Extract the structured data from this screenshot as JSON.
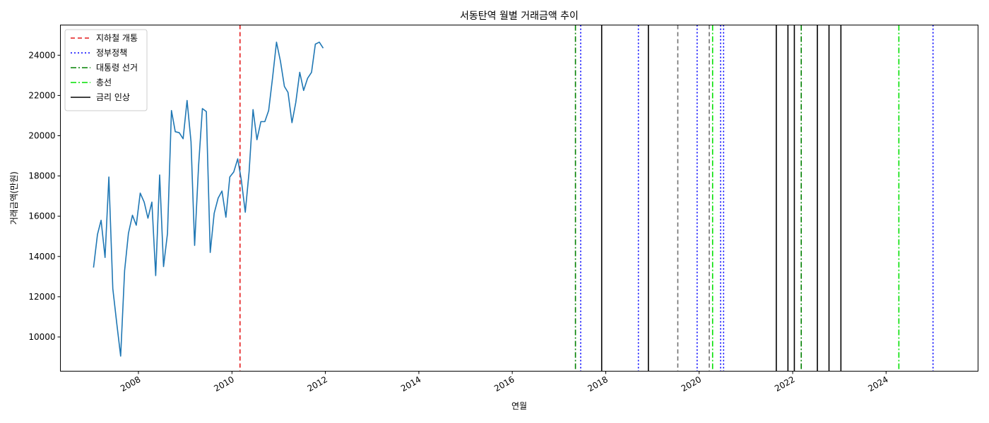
{
  "chart_data": {
    "type": "line",
    "title": "서동탄역 월별 거래금액 추이",
    "xlabel": "연월",
    "ylabel": "거래금액(만원)",
    "xlim": [
      "2006-05-01",
      "2025-12-20"
    ],
    "ylim": [
      8300,
      25500
    ],
    "x_ticks": [
      "2008-01-01",
      "2010-01-01",
      "2012-01-01",
      "2014-01-01",
      "2016-01-01",
      "2018-01-01",
      "2020-01-01",
      "2022-01-01",
      "2024-01-01"
    ],
    "x_tick_labels": [
      "2008",
      "2010",
      "2012",
      "2014",
      "2016",
      "2018",
      "2020",
      "2022",
      "2024"
    ],
    "y_ticks": [
      10000,
      12000,
      14000,
      16000,
      18000,
      20000,
      22000,
      24000
    ],
    "grid": false,
    "legend_position": "top-left",
    "series": [
      {
        "color": "#1f77b4",
        "points": [
          [
            "2007-01",
            13450
          ],
          [
            "2007-02",
            15100
          ],
          [
            "2007-03",
            15800
          ],
          [
            "2007-04",
            13950
          ],
          [
            "2007-05",
            17950
          ],
          [
            "2007-06",
            12400
          ],
          [
            "2007-07",
            10700
          ],
          [
            "2007-08",
            9050
          ],
          [
            "2007-09",
            13300
          ],
          [
            "2007-10",
            15150
          ],
          [
            "2007-11",
            16050
          ],
          [
            "2007-12",
            15550
          ],
          [
            "2008-01",
            17150
          ],
          [
            "2008-02",
            16700
          ],
          [
            "2008-03",
            15900
          ],
          [
            "2008-04",
            16700
          ],
          [
            "2008-05",
            13050
          ],
          [
            "2008-06",
            18050
          ],
          [
            "2008-07",
            13500
          ],
          [
            "2008-08",
            15150
          ],
          [
            "2008-09",
            21250
          ],
          [
            "2008-10",
            20200
          ],
          [
            "2008-11",
            20150
          ],
          [
            "2008-12",
            19850
          ],
          [
            "2009-01",
            21750
          ],
          [
            "2009-02",
            19700
          ],
          [
            "2009-03",
            14550
          ],
          [
            "2009-04",
            18500
          ],
          [
            "2009-05",
            21350
          ],
          [
            "2009-06",
            21200
          ],
          [
            "2009-07",
            14200
          ],
          [
            "2009-08",
            16150
          ],
          [
            "2009-09",
            16900
          ],
          [
            "2009-10",
            17250
          ],
          [
            "2009-11",
            15950
          ],
          [
            "2009-12",
            17950
          ],
          [
            "2010-01",
            18200
          ],
          [
            "2010-02",
            18850
          ],
          [
            "2010-03",
            17800
          ],
          [
            "2010-04",
            16200
          ],
          [
            "2010-05",
            18200
          ],
          [
            "2010-06",
            21300
          ],
          [
            "2010-07",
            19800
          ],
          [
            "2010-08",
            20700
          ],
          [
            "2010-09",
            20700
          ],
          [
            "2010-10",
            21250
          ],
          [
            "2010-11",
            22900
          ],
          [
            "2010-12",
            24650
          ],
          [
            "2011-01",
            23700
          ],
          [
            "2011-02",
            22450
          ],
          [
            "2011-03",
            22150
          ],
          [
            "2011-04",
            20650
          ],
          [
            "2011-05",
            21650
          ],
          [
            "2011-06",
            23150
          ],
          [
            "2011-07",
            22250
          ],
          [
            "2011-08",
            22850
          ],
          [
            "2011-09",
            23150
          ],
          [
            "2011-10",
            24550
          ],
          [
            "2011-11",
            24650
          ],
          [
            "2011-12",
            24350
          ]
        ]
      }
    ],
    "events": [
      {
        "date": "2010-03-05",
        "category": "subway"
      },
      {
        "date": "2017-05-09",
        "category": "election_pres"
      },
      {
        "date": "2017-06-19",
        "category": "policy"
      },
      {
        "date": "2017-11-30",
        "category": "rate"
      },
      {
        "date": "2018-09-13",
        "category": "policy"
      },
      {
        "date": "2018-11-30",
        "category": "rate"
      },
      {
        "date": "2019-07-18",
        "category": "other"
      },
      {
        "date": "2019-12-16",
        "category": "policy"
      },
      {
        "date": "2020-03-20",
        "category": "other"
      },
      {
        "date": "2020-04-15",
        "category": "election_gen"
      },
      {
        "date": "2020-06-17",
        "category": "policy"
      },
      {
        "date": "2020-07-10",
        "category": "policy"
      },
      {
        "date": "2021-08-26",
        "category": "rate"
      },
      {
        "date": "2021-11-25",
        "category": "rate"
      },
      {
        "date": "2022-01-14",
        "category": "rate"
      },
      {
        "date": "2022-03-09",
        "category": "election_pres"
      },
      {
        "date": "2022-07-13",
        "category": "rate"
      },
      {
        "date": "2022-10-12",
        "category": "rate"
      },
      {
        "date": "2023-01-13",
        "category": "rate"
      },
      {
        "date": "2024-04-10",
        "category": "election_gen"
      },
      {
        "date": "2025-01-02",
        "category": "policy"
      }
    ],
    "event_styles": {
      "subway": {
        "color": "#e41a1c",
        "dash": "6,4"
      },
      "policy": {
        "color": "#0000ff",
        "dash": "2,3"
      },
      "election_pres": {
        "color": "#008000",
        "dash": "8,3,2,3"
      },
      "election_gen": {
        "color": "#00e000",
        "dash": "8,3,2,3"
      },
      "rate": {
        "color": "#000000",
        "dash": ""
      },
      "other": {
        "color": "#707070",
        "dash": "6,4"
      }
    },
    "legend": [
      {
        "label": "지하철 개통",
        "category": "subway"
      },
      {
        "label": "정부정책",
        "category": "policy"
      },
      {
        "label": "대통령 선거",
        "category": "election_pres"
      },
      {
        "label": "총선",
        "category": "election_gen"
      },
      {
        "label": "금리 인상",
        "category": "rate"
      }
    ]
  }
}
